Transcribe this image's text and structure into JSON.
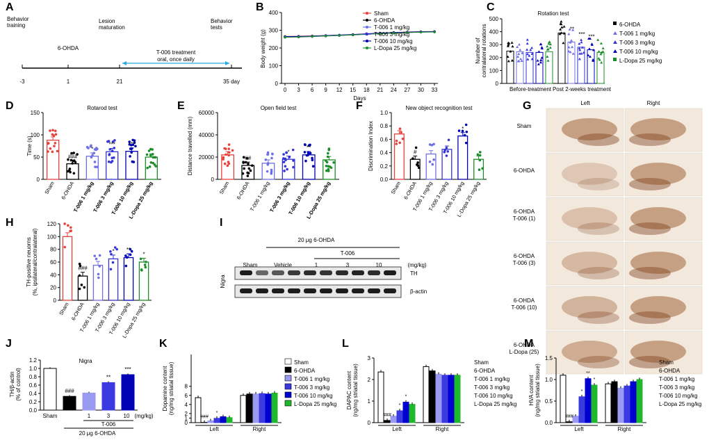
{
  "colors": {
    "sham": "#e8413c",
    "ohda": "#000000",
    "t1": "#6f6fe6",
    "t3": "#3333d6",
    "t10": "#0000b4",
    "ldopa": "#1d8c2a",
    "timeline": "#29a9e0",
    "axis": "#000000",
    "ihc_bg": "#f3e8dc"
  },
  "panel_labels": {
    "A": "A",
    "B": "B",
    "C": "C",
    "D": "D",
    "E": "E",
    "F": "F",
    "G": "G",
    "H": "H",
    "I": "I",
    "J": "J",
    "K": "K",
    "L": "L",
    "M": "M"
  },
  "timeline": {
    "stage_training": "Behavior training",
    "stage_lesion": "Lesion maturation",
    "stage_tests": "Behavior tests",
    "ohda_label": "6-OHDA",
    "treatment_line1": "T-006 treatment",
    "treatment_line2": "oral, once daily",
    "days": [
      "-3",
      "1",
      "21",
      "35 day"
    ]
  },
  "legend_main": [
    "Sham",
    "6-OHDA",
    "T-006 1 mg/kg",
    "T-006 3 mg/kg",
    "T-006 10 mg/kg",
    "L-Dopa 25 mg/kg"
  ],
  "legend_c": [
    "6-OHDA",
    "T-006 1 mg/kg",
    "T-006 3 mg/kg",
    "T-006 10 mg/kg",
    "L-Dopa 25 mg/kg"
  ],
  "group_labels": [
    "Sham",
    "6-OHDA",
    "T-006 1 mg/kg",
    "T-006 3 mg/kg",
    "T-006 10 mg/kg",
    "L-Dopa 25 mg/kg"
  ],
  "panel_g": {
    "col_left": "Left",
    "col_right": "Right",
    "rows": [
      "Sham",
      "6-OHDA",
      "6-OHDA\nT-006 (1)",
      "6-OHDA\nT-006 (3)",
      "6-OHDA\nT-006 (10)",
      "6-OHDA\nL-Dopa (25)"
    ]
  },
  "panel_i": {
    "header": "20 μg 6-OHDA",
    "subheader": "T-006",
    "lanes": [
      "Sham",
      "Vehicle",
      "1",
      "3",
      "10"
    ],
    "unit": "(mg/kg)",
    "rows": [
      "TH",
      "β-actin"
    ],
    "side_label": "Nigra"
  },
  "panel_j_extra": {
    "title": "Nigra",
    "xticks": [
      "Sham",
      "1",
      "3",
      "10"
    ],
    "unit": "(mg/kg)",
    "group1": "T-006",
    "group2": "20 μg 6-OHDA"
  },
  "chart_data": [
    {
      "id": "B",
      "type": "line",
      "ylabel": "Body weight (g)",
      "xlabel": "Days",
      "x": [
        0,
        3,
        6,
        9,
        12,
        15,
        18,
        21,
        24,
        27,
        30,
        33
      ],
      "ylim": [
        0,
        400
      ],
      "yticks": [
        0,
        100,
        200,
        300,
        400
      ],
      "series": [
        {
          "name": "Sham",
          "values": [
            265,
            266,
            268,
            270,
            272,
            276,
            280,
            284,
            287,
            290,
            292,
            293
          ]
        },
        {
          "name": "6-OHDA",
          "values": [
            262,
            263,
            265,
            268,
            271,
            274,
            278,
            282,
            285,
            288,
            290,
            291
          ]
        },
        {
          "name": "T-006 1 mg/kg",
          "values": [
            260,
            262,
            264,
            267,
            270,
            273,
            277,
            281,
            284,
            287,
            289,
            290
          ]
        },
        {
          "name": "T-006 3 mg/kg",
          "values": [
            263,
            264,
            266,
            269,
            272,
            275,
            279,
            283,
            286,
            289,
            291,
            292
          ]
        },
        {
          "name": "T-006 10 mg/kg",
          "values": [
            264,
            265,
            267,
            270,
            273,
            276,
            280,
            284,
            287,
            289,
            291,
            292
          ]
        },
        {
          "name": "L-Dopa 25 mg/kg",
          "values": [
            261,
            262,
            265,
            268,
            271,
            274,
            278,
            281,
            284,
            287,
            289,
            290
          ]
        }
      ]
    },
    {
      "id": "C",
      "type": "bar",
      "title": "Rotation test",
      "ylabel": "Number of\ncontralateral rotations",
      "categories": [
        "Before-treatment",
        "Post 2-weeks treatment"
      ],
      "ylim": [
        0,
        500
      ],
      "yticks": [
        0,
        100,
        200,
        300,
        400,
        500
      ],
      "series": [
        {
          "name": "6-OHDA",
          "values": [
            250,
            390
          ]
        },
        {
          "name": "T-006 1 mg/kg",
          "values": [
            245,
            320
          ]
        },
        {
          "name": "T-006 3 mg/kg",
          "values": [
            240,
            280
          ]
        },
        {
          "name": "T-006 10 mg/kg",
          "values": [
            240,
            260
          ]
        },
        {
          "name": "L-Dopa 25 mg/kg",
          "values": [
            245,
            240
          ]
        }
      ],
      "annotations": [
        "**",
        "***",
        "***"
      ]
    },
    {
      "id": "D",
      "type": "bar",
      "title": "Rotarod test",
      "ylabel": "Time (s)",
      "ylim": [
        0,
        150
      ],
      "yticks": [
        0,
        50,
        100,
        150
      ],
      "values": [
        88,
        35,
        52,
        62,
        63,
        50
      ],
      "annotations": [
        "",
        "###",
        "*",
        "***",
        "***",
        ""
      ]
    },
    {
      "id": "E",
      "type": "bar",
      "title": "Open field test",
      "ylabel": "Distance travelled  (mm)",
      "ylim": [
        0,
        60000
      ],
      "yticks": [
        0,
        20000,
        40000,
        60000
      ],
      "values": [
        22000,
        12500,
        14500,
        18000,
        22000,
        17500
      ],
      "annotations": [
        "",
        "##",
        "",
        "*",
        "**",
        ""
      ]
    },
    {
      "id": "F",
      "type": "bar",
      "title": "New object recognition test",
      "ylabel": "Discrimination Index",
      "ylim": [
        0,
        1.0
      ],
      "yticks": [
        0.0,
        0.2,
        0.4,
        0.6,
        0.8,
        1.0
      ],
      "values": [
        0.68,
        0.3,
        0.38,
        0.45,
        0.65,
        0.3
      ],
      "annotations": [
        "",
        "#",
        "",
        "",
        "*",
        ""
      ]
    },
    {
      "id": "H",
      "type": "bar",
      "ylabel": "TH-positive neuorns\n(%, ipsilateral/contralateral)",
      "ylim": [
        0,
        120
      ],
      "yticks": [
        0,
        20,
        40,
        60,
        80,
        100,
        120
      ],
      "values": [
        100,
        38,
        55,
        65,
        67,
        60
      ],
      "annotations": [
        "",
        "###",
        "",
        "*",
        "**",
        "*"
      ]
    },
    {
      "id": "J",
      "type": "bar",
      "ylabel": "TH/β-actin\n(% of control)",
      "ylim": [
        0,
        1.2
      ],
      "yticks": [
        0.0,
        0.2,
        0.4,
        0.6,
        0.8,
        1.0,
        1.2
      ],
      "values": [
        1.0,
        0.33,
        0.41,
        0.66,
        0.85
      ],
      "annotations": [
        "",
        "###",
        "",
        "**",
        "***"
      ]
    },
    {
      "id": "K",
      "type": "bar",
      "ylabel": "Dopamine content\n(ng/mg striatal tissue)",
      "categories": [
        "Left",
        "Right"
      ],
      "ylim": [
        0,
        15
      ],
      "yticks": [
        0,
        0.5,
        1.0,
        1.5,
        2.0,
        2.5,
        4,
        5,
        6,
        7,
        8,
        9,
        10,
        15
      ],
      "series": [
        {
          "name": "Sham",
          "values": [
            5.5,
            6.0
          ]
        },
        {
          "name": "6-OHDA",
          "values": [
            0.05,
            6.3
          ]
        },
        {
          "name": "T-006 1 mg/kg",
          "values": [
            0.4,
            6.3
          ]
        },
        {
          "name": "T-006 3 mg/kg",
          "values": [
            0.95,
            6.4
          ]
        },
        {
          "name": "T-006 10 mg/kg",
          "values": [
            1.3,
            6.3
          ]
        },
        {
          "name": "L-Dopa 25 mg/kg",
          "values": [
            1.1,
            6.5
          ]
        }
      ],
      "annotations": [
        "###",
        "*"
      ]
    },
    {
      "id": "L",
      "type": "bar",
      "ylabel": "DAPAC content\n(ng/mg striatal tissue)",
      "categories": [
        "Left",
        "Right"
      ],
      "ylim": [
        0,
        3
      ],
      "yticks": [
        0,
        1,
        2,
        3
      ],
      "series": [
        {
          "name": "Sham",
          "values": [
            2.35,
            2.6
          ]
        },
        {
          "name": "6-OHDA",
          "values": [
            0.1,
            2.4
          ]
        },
        {
          "name": "T-006 1 mg/kg",
          "values": [
            0.3,
            2.25
          ]
        },
        {
          "name": "T-006 3 mg/kg",
          "values": [
            0.55,
            2.2
          ]
        },
        {
          "name": "T-006 10 mg/kg",
          "values": [
            0.95,
            2.2
          ]
        },
        {
          "name": "L-Dopa 25 mg/kg",
          "values": [
            0.85,
            2.2
          ]
        }
      ],
      "annotations": [
        "###",
        "*",
        "*"
      ]
    },
    {
      "id": "M",
      "type": "bar",
      "ylabel": "HVA content\n(ng/mg striatal tissue)",
      "categories": [
        "Left",
        "Right"
      ],
      "ylim": [
        0,
        1.5
      ],
      "yticks": [
        0.0,
        0.5,
        1.0,
        1.5
      ],
      "series": [
        {
          "name": "Sham",
          "values": [
            1.1,
            0.9
          ]
        },
        {
          "name": "6-OHDA",
          "values": [
            0.02,
            0.95
          ]
        },
        {
          "name": "T-006 1 mg/kg",
          "values": [
            0.15,
            0.8
          ]
        },
        {
          "name": "T-006 3 mg/kg",
          "values": [
            0.6,
            0.85
          ]
        },
        {
          "name": "T-006 10 mg/kg",
          "values": [
            1.02,
            0.95
          ]
        },
        {
          "name": "L-Dopa 25 mg/kg",
          "values": [
            0.87,
            1.0
          ]
        }
      ],
      "annotations": [
        "###",
        "*",
        "**",
        "*"
      ]
    }
  ]
}
